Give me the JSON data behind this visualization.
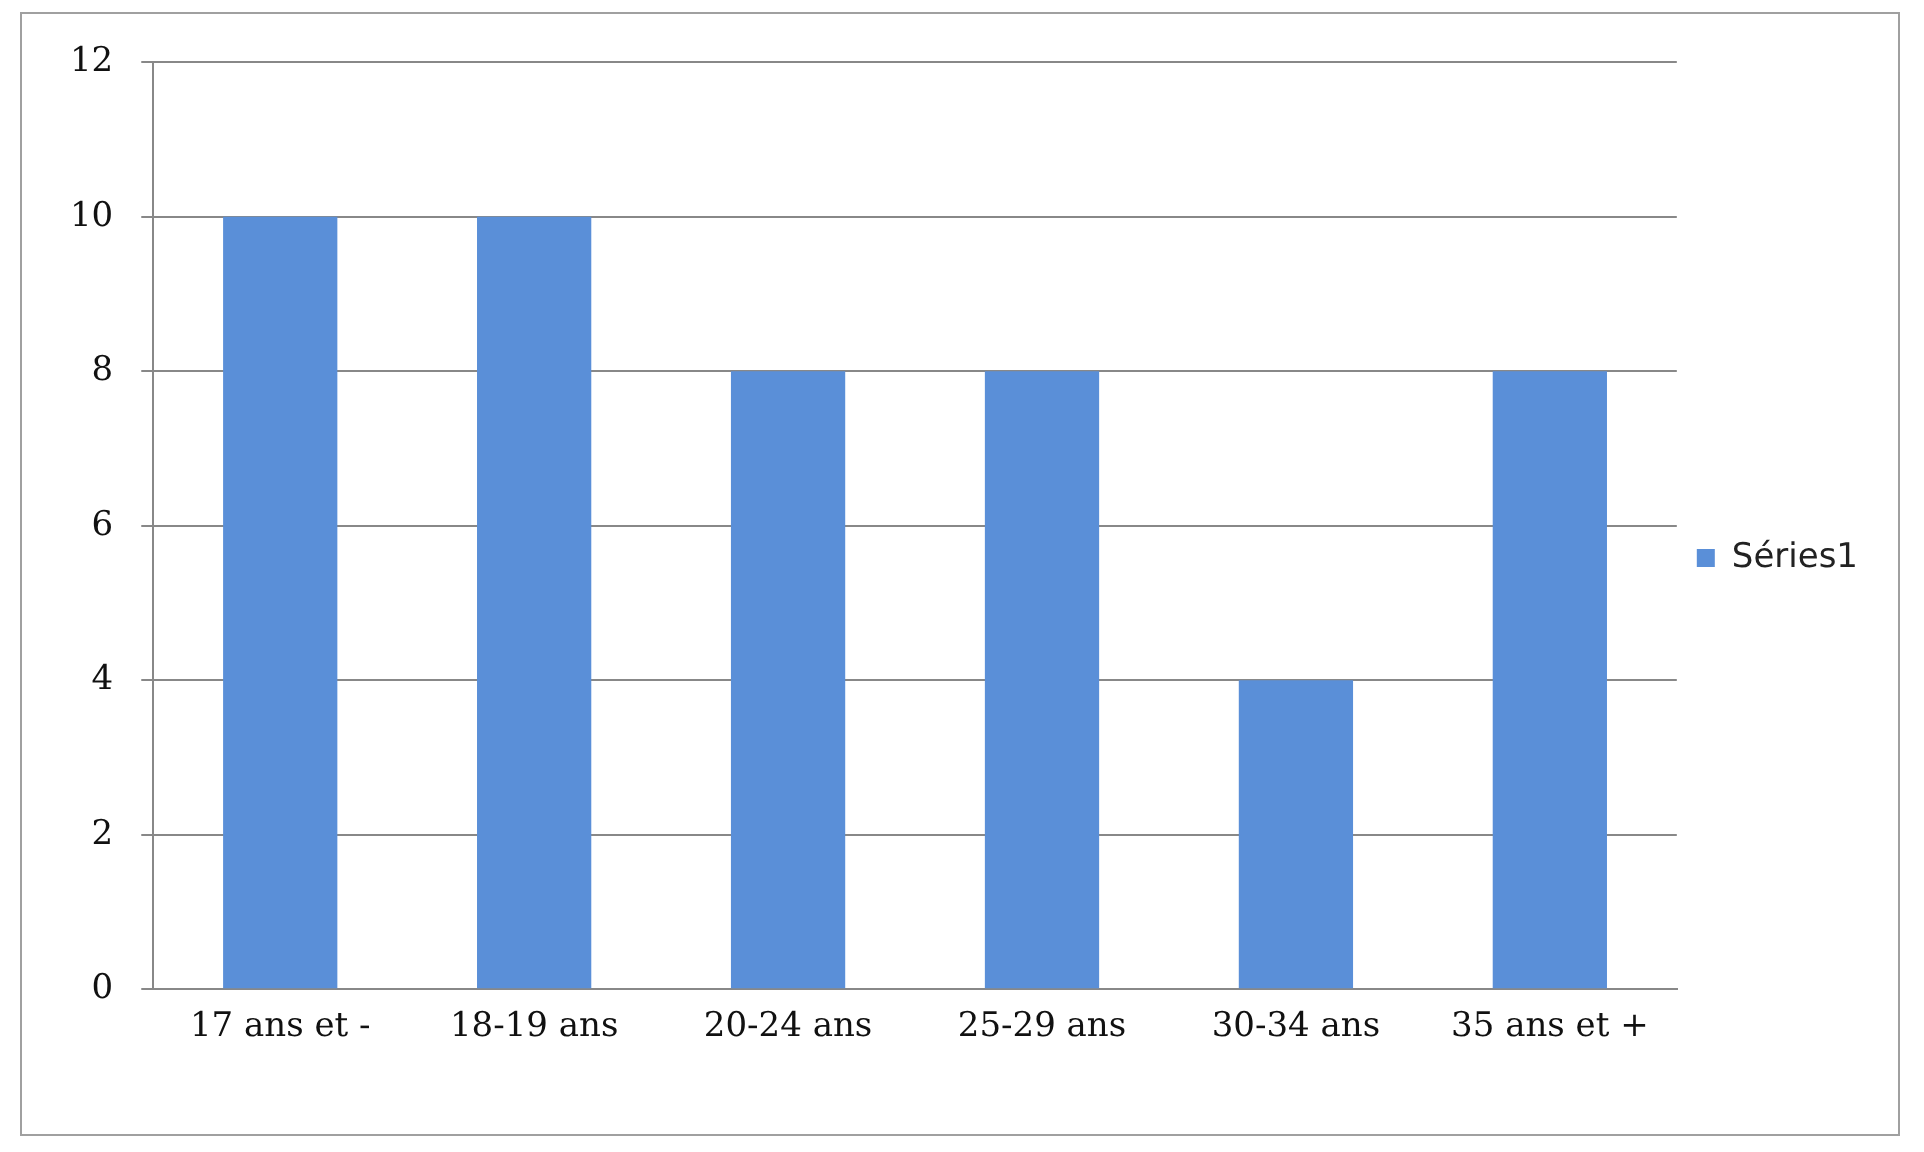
{
  "chart_data": {
    "type": "bar",
    "categories": [
      "17 ans et -",
      "18-19 ans",
      "20-24 ans",
      "25-29 ans",
      "30-34 ans",
      "35 ans et +"
    ],
    "series": [
      {
        "name": "Séries1",
        "color": "#5a8fd8",
        "values": [
          10,
          10,
          8,
          8,
          4,
          8
        ]
      }
    ],
    "ylim": [
      0,
      12
    ],
    "yticks": [
      0,
      2,
      4,
      6,
      8,
      10,
      12
    ],
    "grid": "y",
    "legend": "right"
  }
}
